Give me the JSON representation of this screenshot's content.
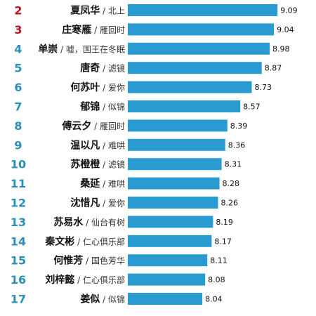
{
  "chart_data": {
    "type": "bar",
    "orientation": "horizontal",
    "colors": {
      "bar": "#2A9BD1",
      "rank_top": "#C0111F",
      "rank": "#2B8FB8"
    },
    "rows": [
      {
        "rank": "2",
        "name": "夏凤华",
        "work": "北上",
        "value": 9.09,
        "value_label": "9.09"
      },
      {
        "rank": "3",
        "name": "庄寒雁",
        "work": "雁回时",
        "value": 9.04,
        "value_label": "9.04"
      },
      {
        "rank": "4",
        "name": "单崇",
        "work": "嘘，国王在冬眠",
        "value": 8.98,
        "value_label": "8.98"
      },
      {
        "rank": "5",
        "name": "唐奇",
        "work": "滤镜",
        "value": 8.87,
        "value_label": "8.87"
      },
      {
        "rank": "6",
        "name": "何苏叶",
        "work": "爱你",
        "value": 8.73,
        "value_label": "8.73"
      },
      {
        "rank": "7",
        "name": "郁锦",
        "work": "似锦",
        "value": 8.57,
        "value_label": "8.57"
      },
      {
        "rank": "8",
        "name": "傅云夕",
        "work": "雁回时",
        "value": 8.39,
        "value_label": "8.39"
      },
      {
        "rank": "9",
        "name": "温以凡",
        "work": "难哄",
        "value": 8.36,
        "value_label": "8.36"
      },
      {
        "rank": "10",
        "name": "苏橙橙",
        "work": "滤镜",
        "value": 8.31,
        "value_label": "8.31"
      },
      {
        "rank": "11",
        "name": "桑延",
        "work": "难哄",
        "value": 8.28,
        "value_label": "8.28"
      },
      {
        "rank": "12",
        "name": "沈惜凡",
        "work": "爱你",
        "value": 8.26,
        "value_label": "8.26"
      },
      {
        "rank": "13",
        "name": "苏易水",
        "work": "仙台有树",
        "value": 8.19,
        "value_label": "8.19"
      },
      {
        "rank": "14",
        "name": "秦文彬",
        "work": "仁心俱乐部",
        "value": 8.17,
        "value_label": "8.17"
      },
      {
        "rank": "15",
        "name": "何惟芳",
        "work": "国色芳华",
        "value": 8.11,
        "value_label": "8.11"
      },
      {
        "rank": "16",
        "name": "刘梓懿",
        "work": "仁心俱乐部",
        "value": 8.08,
        "value_label": "8.08"
      },
      {
        "rank": "17",
        "name": "姜似",
        "work": "似锦",
        "value": 8.04,
        "value_label": "8.04"
      }
    ]
  }
}
